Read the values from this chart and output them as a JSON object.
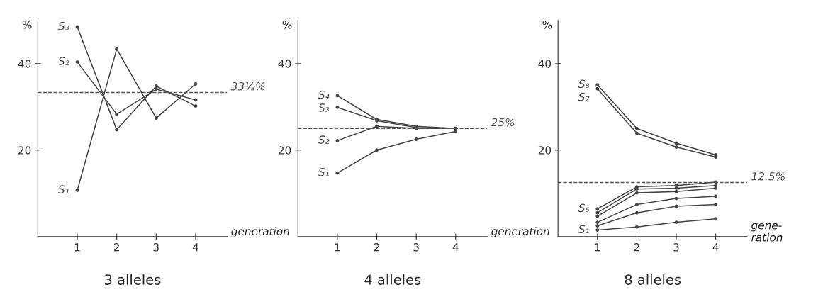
{
  "chart_data": [
    {
      "type": "line",
      "title": "3 alleles",
      "xlabel": "generation",
      "ylabel": "%",
      "x": [
        1,
        2,
        3,
        4
      ],
      "xlim": [
        0,
        4.8
      ],
      "ylim": [
        0,
        50
      ],
      "xticks": [
        1,
        2,
        3,
        4
      ],
      "yticks": [
        20,
        40
      ],
      "grid": false,
      "legend": false,
      "marker": "circle",
      "line_style": "solid",
      "ref_lines": [
        {
          "axis": "y",
          "value": 33.33,
          "label": "33⅓%",
          "line_style": "dashed",
          "color": "#555555"
        }
      ],
      "series": [
        {
          "name": "S₃",
          "color": "#444444",
          "values": [
            48.5,
            24.7,
            34.8,
            30.2
          ]
        },
        {
          "name": "S₂",
          "color": "#444444",
          "values": [
            40.4,
            28.3,
            34.1,
            31.6
          ]
        },
        {
          "name": "S₁",
          "color": "#444444",
          "values": [
            10.7,
            43.4,
            27.4,
            35.3
          ]
        }
      ]
    },
    {
      "type": "line",
      "title": "4 alleles",
      "xlabel": "generation",
      "ylabel": "%",
      "x": [
        1,
        2,
        3,
        4
      ],
      "xlim": [
        0,
        4.8
      ],
      "ylim": [
        0,
        50
      ],
      "xticks": [
        1,
        2,
        3,
        4
      ],
      "yticks": [
        20,
        40
      ],
      "grid": false,
      "legend": false,
      "marker": "circle",
      "line_style": "solid",
      "ref_lines": [
        {
          "axis": "y",
          "value": 25,
          "label": "25%",
          "line_style": "dashed",
          "color": "#555555"
        }
      ],
      "series": [
        {
          "name": "S₄",
          "color": "#444444",
          "values": [
            32.6,
            27.1,
            25.5,
            25.0
          ]
        },
        {
          "name": "S₃",
          "color": "#444444",
          "values": [
            29.9,
            26.8,
            25.2,
            25.0
          ]
        },
        {
          "name": "S₂",
          "color": "#444444",
          "values": [
            22.2,
            25.5,
            25.0,
            25.0
          ]
        },
        {
          "name": "S₁",
          "color": "#444444",
          "values": [
            14.7,
            20.0,
            22.5,
            24.3
          ]
        }
      ]
    },
    {
      "type": "line",
      "title": "8 alleles",
      "xlabel": "gene-\nration",
      "ylabel": "%",
      "x": [
        1,
        2,
        3,
        4
      ],
      "xlim": [
        0,
        4.8
      ],
      "ylim": [
        0,
        50
      ],
      "xticks": [
        1,
        2,
        3,
        4
      ],
      "yticks": [
        20,
        40
      ],
      "grid": false,
      "legend": false,
      "marker": "circle",
      "line_style": "solid",
      "ref_lines": [
        {
          "axis": "y",
          "value": 12.5,
          "label": "12.5%",
          "line_style": "dashed",
          "color": "#555555"
        }
      ],
      "series": [
        {
          "name": "S₈",
          "color": "#444444",
          "values": [
            35.1,
            25.0,
            21.6,
            18.9
          ]
        },
        {
          "name": "S₇",
          "color": "#444444",
          "values": [
            34.2,
            23.9,
            20.7,
            18.4
          ]
        },
        {
          "name": "S₆",
          "color": "#444444",
          "values": [
            6.4,
            11.5,
            11.8,
            12.6
          ]
        },
        {
          "color": "#444444",
          "values": [
            5.5,
            11.0,
            11.2,
            11.8
          ]
        },
        {
          "color": "#444444",
          "values": [
            4.7,
            10.1,
            10.4,
            11.2
          ]
        },
        {
          "color": "#444444",
          "values": [
            3.3,
            7.4,
            8.8,
            9.3
          ]
        },
        {
          "color": "#444444",
          "values": [
            2.5,
            5.5,
            7.0,
            7.4
          ]
        },
        {
          "name": "S₁",
          "color": "#444444",
          "values": [
            1.5,
            2.2,
            3.3,
            4.1
          ]
        }
      ]
    }
  ]
}
